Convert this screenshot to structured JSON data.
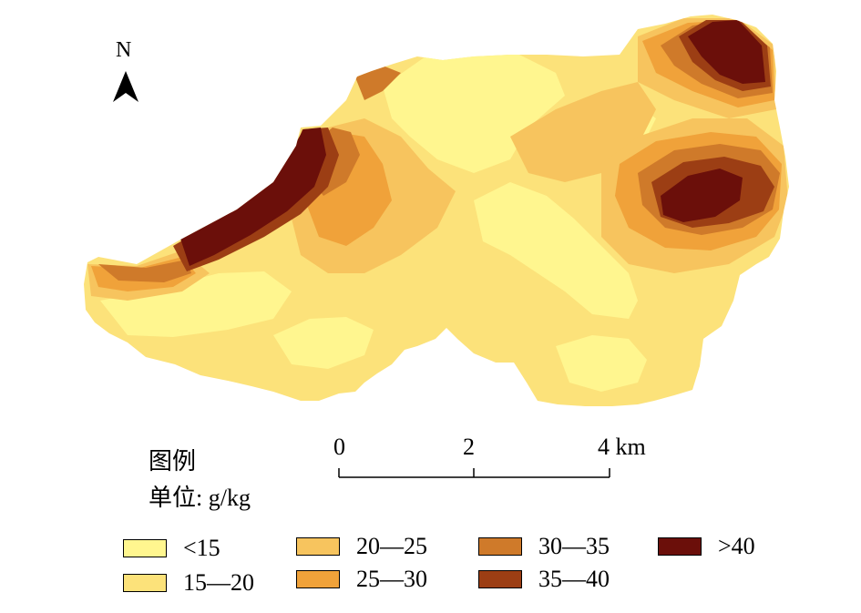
{
  "north_arrow": {
    "label": "N",
    "icon": "north-arrow-icon"
  },
  "scale_bar": {
    "ticks": [
      {
        "value": 0,
        "label": "0"
      },
      {
        "value": 2,
        "label": "2"
      },
      {
        "value": 4,
        "label": "4 km"
      }
    ]
  },
  "legend": {
    "title": "图例",
    "unit_prefix": "单位",
    "unit_suffix": ": g/kg",
    "items": [
      {
        "label": "<15",
        "color": "#FFF68F"
      },
      {
        "label": "15—20",
        "color": "#FCE27A"
      },
      {
        "label": "20—25",
        "color": "#F7C45E"
      },
      {
        "label": "25—30",
        "color": "#F0A23A"
      },
      {
        "label": "30—35",
        "color": "#CF7A2A"
      },
      {
        "label": "35—40",
        "color": "#9C3E14"
      },
      {
        "label": ">40",
        "color": "#6B0F0A"
      }
    ]
  }
}
